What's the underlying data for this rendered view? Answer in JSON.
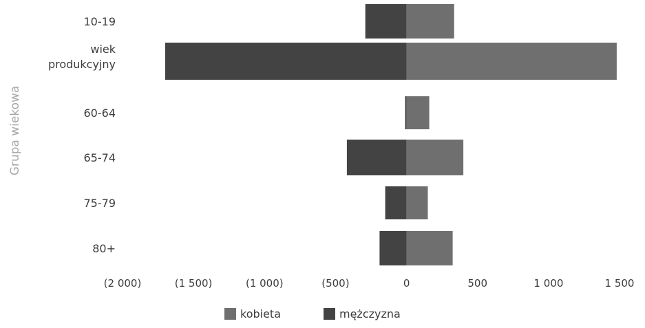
{
  "chart_data": {
    "type": "bar",
    "orientation": "horizontal",
    "stacked": "diverging",
    "ylabel": "Grupa wiekowa",
    "categories": [
      "10-19",
      "wiek\nprodukcyjny",
      "60-64",
      "65-74",
      "75-79",
      "80+"
    ],
    "series": [
      {
        "name": "kobieta",
        "color": "#6f6f6f",
        "values": [
          335,
          1480,
          160,
          400,
          150,
          325
        ]
      },
      {
        "name": "mężczyzna",
        "color": "#434343",
        "values": [
          -290,
          -1700,
          -10,
          -420,
          -150,
          -190
        ]
      }
    ],
    "xlim": [
      -2000,
      1500
    ],
    "xticks": [
      -2000,
      -1500,
      -1000,
      -500,
      0,
      500,
      1000,
      1500
    ],
    "xtick_labels": [
      "(2 000)",
      "(1 500)",
      "(1 000)",
      "(500)",
      "0",
      "500",
      "1 000",
      "1 500"
    ],
    "grid": false,
    "legend_position": "bottom"
  }
}
